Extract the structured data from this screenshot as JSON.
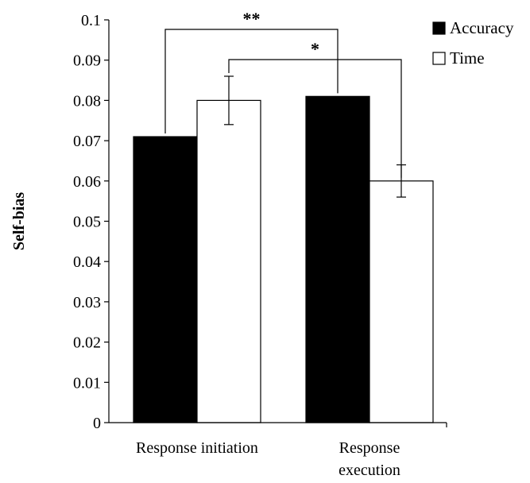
{
  "chart_data": {
    "type": "bar",
    "ylabel": "Self-bias",
    "ylim": [
      0,
      0.1
    ],
    "y_ticks": [
      "0",
      "0.01",
      "0.02",
      "0.03",
      "0.04",
      "0.05",
      "0.06",
      "0.07",
      "0.08",
      "0.09",
      "0.1"
    ],
    "categories": [
      "Response initiation",
      "Response execution"
    ],
    "category_label_lines": [
      [
        "Response initiation"
      ],
      [
        "Response",
        "execution"
      ]
    ],
    "series": [
      {
        "name": "Accuracy",
        "values": [
          0.071,
          0.081
        ],
        "errors": [
          null,
          null
        ],
        "color": "#000000"
      },
      {
        "name": "Time",
        "values": [
          0.08,
          0.06
        ],
        "errors": [
          0.006,
          0.004
        ],
        "color": "#ffffff"
      }
    ],
    "significance": [
      {
        "label": "**",
        "from_series": 0,
        "from_category": 0,
        "to_category": 1
      },
      {
        "label": "*",
        "from_series": 1,
        "from_category": 0,
        "to_category": 1
      }
    ],
    "legend_position": "top-right",
    "grid": false
  }
}
